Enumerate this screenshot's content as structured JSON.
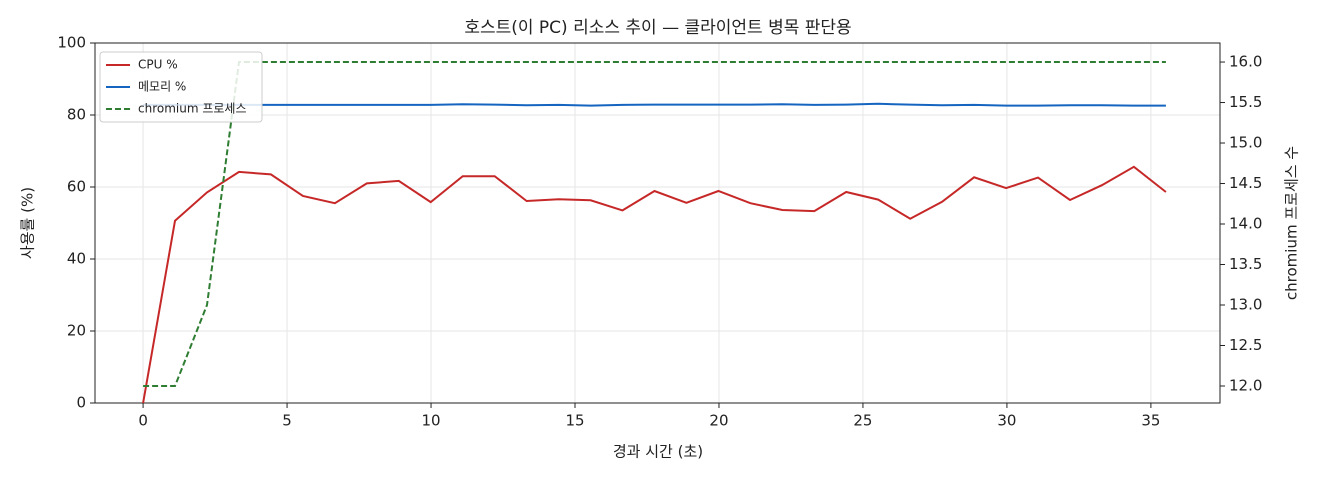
{
  "chart_data": {
    "type": "line",
    "title": "호스트(이 PC) 리소스 추이 — 클라이언트 병목 판단용",
    "x_label": "경과 시간 (초)",
    "y_label": "사용률 (%)",
    "y2_label": "chromium 프로세스 수",
    "x": [
      0,
      1.11,
      2.22,
      3.33,
      4.44,
      5.55,
      6.66,
      7.77,
      8.88,
      9.99,
      11.1,
      12.21,
      13.32,
      14.43,
      15.54,
      16.65,
      17.76,
      18.87,
      19.98,
      21.09,
      22.2,
      23.31,
      24.42,
      25.53,
      26.64,
      27.75,
      28.86,
      29.97,
      31.08,
      32.19,
      33.3,
      34.41,
      35.52
    ],
    "series": [
      {
        "name": "CPU %",
        "color": "#c62828",
        "linestyle": "solid",
        "values": [
          0,
          50.6,
          58.5,
          64.2,
          63.5,
          57.5,
          55.5,
          61,
          61.7,
          55.8,
          63,
          63,
          56.1,
          56.6,
          56.3,
          53.5,
          58.9,
          55.6,
          58.9,
          55.5,
          53.6,
          53.3,
          58.6,
          56.5,
          51.2,
          55.9,
          62.7,
          59.7,
          62.6,
          56.4,
          60.5,
          65.6,
          58.6
        ]
      },
      {
        "name": "메모리 %",
        "color": "#1565c0",
        "linestyle": "solid",
        "values": [
          82.8,
          82.8,
          82.8,
          82.8,
          82.8,
          82.8,
          82.8,
          82.8,
          82.8,
          82.8,
          83,
          82.9,
          82.7,
          82.8,
          82.6,
          82.8,
          82.9,
          82.9,
          82.9,
          82.9,
          83,
          82.8,
          82.9,
          83.1,
          82.9,
          82.7,
          82.8,
          82.6,
          82.6,
          82.7,
          82.7,
          82.6,
          82.6
        ]
      },
      {
        "name": "chromium 프로세스",
        "color": "#2e7d32",
        "linestyle": "dashed",
        "axis": "y2",
        "values": [
          12,
          12,
          13,
          16,
          16,
          16,
          16,
          16,
          16,
          16,
          16,
          16,
          16,
          16,
          16,
          16,
          16,
          16,
          16,
          16,
          16,
          16,
          16,
          16,
          16,
          16,
          16,
          16,
          16,
          16,
          16,
          16,
          16
        ]
      }
    ],
    "xlim": [
      -1.67,
      37.4
    ],
    "xticks": [
      0,
      5,
      10,
      15,
      20,
      25,
      30,
      35
    ],
    "ylim": [
      0,
      100
    ],
    "yticks": [
      0,
      20,
      40,
      60,
      80,
      100
    ],
    "y2lim": [
      11.79,
      16.235
    ],
    "y2ticks": [
      {
        "value": 12,
        "label": "12.0"
      },
      {
        "value": 12.5,
        "label": "12.5"
      },
      {
        "value": 13,
        "label": "13.0"
      },
      {
        "value": 13.5,
        "label": "13.5"
      },
      {
        "value": 14,
        "label": "14.0"
      },
      {
        "value": 14.5,
        "label": "14.5"
      },
      {
        "value": 15,
        "label": "15.0"
      },
      {
        "value": 15.5,
        "label": "15.5"
      },
      {
        "value": 16,
        "label": "16.0"
      }
    ],
    "grid": true,
    "legend": "upper left"
  }
}
